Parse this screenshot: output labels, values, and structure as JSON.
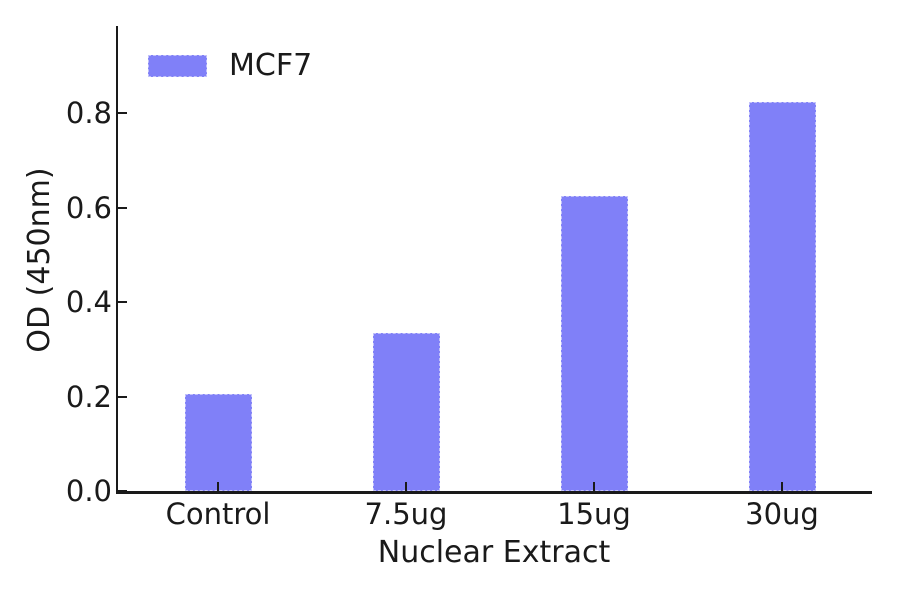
{
  "chart_data": {
    "type": "bar",
    "title": "",
    "xlabel": "Nuclear Extract",
    "ylabel": "OD (450nm)",
    "categories": [
      "Control",
      "7.5ug",
      "15ug",
      "30ug"
    ],
    "series": [
      {
        "name": "MCF7",
        "color": "#8080f8",
        "values": [
          0.205,
          0.335,
          0.625,
          0.825
        ]
      }
    ],
    "yticks": [
      0.0,
      0.2,
      0.4,
      0.6,
      0.8
    ],
    "ytick_labels": [
      "0.0",
      "0.2",
      "0.4",
      "0.6",
      "0.8"
    ],
    "ylim": [
      0,
      0.985
    ],
    "grid": false,
    "legend": {
      "position": "upper-left",
      "entries": [
        "MCF7"
      ]
    },
    "colors": {
      "background": "#ffffff",
      "axis": "#1a1a1a",
      "text": "#1a1a1a",
      "bar_fill": "#8080f8",
      "bar_edge": "#c2c2fa"
    }
  }
}
